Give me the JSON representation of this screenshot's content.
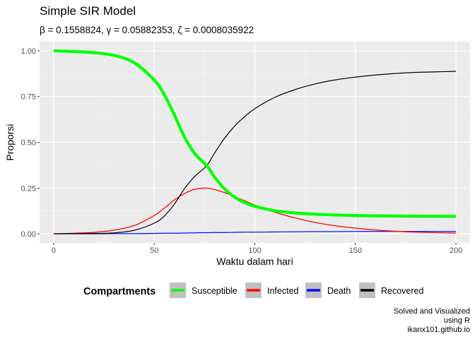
{
  "title": "Simple SIR Model",
  "subtitle": "β = 0.1558824,  γ = 0.05882353,  ζ = 0.0008035922",
  "chart_data": {
    "type": "line",
    "title": "Simple SIR Model",
    "subtitle": "β = 0.1558824,  γ = 0.05882353,  ζ = 0.0008035922",
    "xlabel": "Waktu dalam hari",
    "ylabel": "Proporsi",
    "xlim": [
      -7,
      207
    ],
    "ylim": [
      -0.05,
      1.05
    ],
    "x_ticks": [
      0,
      50,
      100,
      150,
      200
    ],
    "y_ticks": [
      0,
      0.25,
      0.5,
      0.75,
      1
    ],
    "x_tick_labels": [
      "0",
      "50",
      "100",
      "150",
      "200"
    ],
    "y_tick_labels": [
      "0.00",
      "0.25",
      "0.50",
      "0.75",
      "1.00"
    ],
    "grid": true,
    "legend_position": "bottom",
    "legend_title": "Compartments",
    "x": [
      0,
      10,
      20,
      30,
      40,
      50,
      55,
      60,
      65,
      70,
      75,
      77,
      80,
      85,
      90,
      95,
      100,
      110,
      120,
      130,
      140,
      150,
      160,
      170,
      180,
      190,
      200
    ],
    "series": [
      {
        "name": "Susceptible",
        "color": "#00ff00",
        "width": 4.2,
        "values": [
          1.0,
          0.996,
          0.99,
          0.975,
          0.935,
          0.84,
          0.76,
          0.65,
          0.53,
          0.44,
          0.385,
          0.36,
          0.31,
          0.245,
          0.2,
          0.17,
          0.15,
          0.126,
          0.114,
          0.107,
          0.103,
          0.1,
          0.098,
          0.097,
          0.096,
          0.096,
          0.095
        ]
      },
      {
        "name": "Infected",
        "color": "#ff0000",
        "width": 1.3,
        "values": [
          0.0,
          0.003,
          0.008,
          0.02,
          0.045,
          0.1,
          0.14,
          0.185,
          0.22,
          0.243,
          0.25,
          0.248,
          0.242,
          0.225,
          0.203,
          0.18,
          0.157,
          0.118,
          0.087,
          0.062,
          0.044,
          0.031,
          0.021,
          0.014,
          0.009,
          0.006,
          0.004
        ]
      },
      {
        "name": "Death",
        "color": "#0000ff",
        "width": 1.2,
        "values": [
          0.0,
          0.0,
          0.0,
          0.001,
          0.001,
          0.002,
          0.003,
          0.003,
          0.004,
          0.005,
          0.006,
          0.006,
          0.007,
          0.007,
          0.008,
          0.009,
          0.009,
          0.01,
          0.011,
          0.012,
          0.012,
          0.013,
          0.013,
          0.013,
          0.013,
          0.013,
          0.013
        ]
      },
      {
        "name": "Recovered",
        "color": "#000000",
        "width": 1.2,
        "values": [
          0.0,
          0.001,
          0.002,
          0.005,
          0.019,
          0.058,
          0.097,
          0.162,
          0.246,
          0.312,
          0.36,
          0.386,
          0.441,
          0.523,
          0.589,
          0.641,
          0.684,
          0.746,
          0.788,
          0.819,
          0.841,
          0.856,
          0.868,
          0.876,
          0.882,
          0.885,
          0.888
        ]
      }
    ]
  },
  "caption": [
    "Solved and Visualized",
    "using R",
    "ikanx101.github.io"
  ]
}
